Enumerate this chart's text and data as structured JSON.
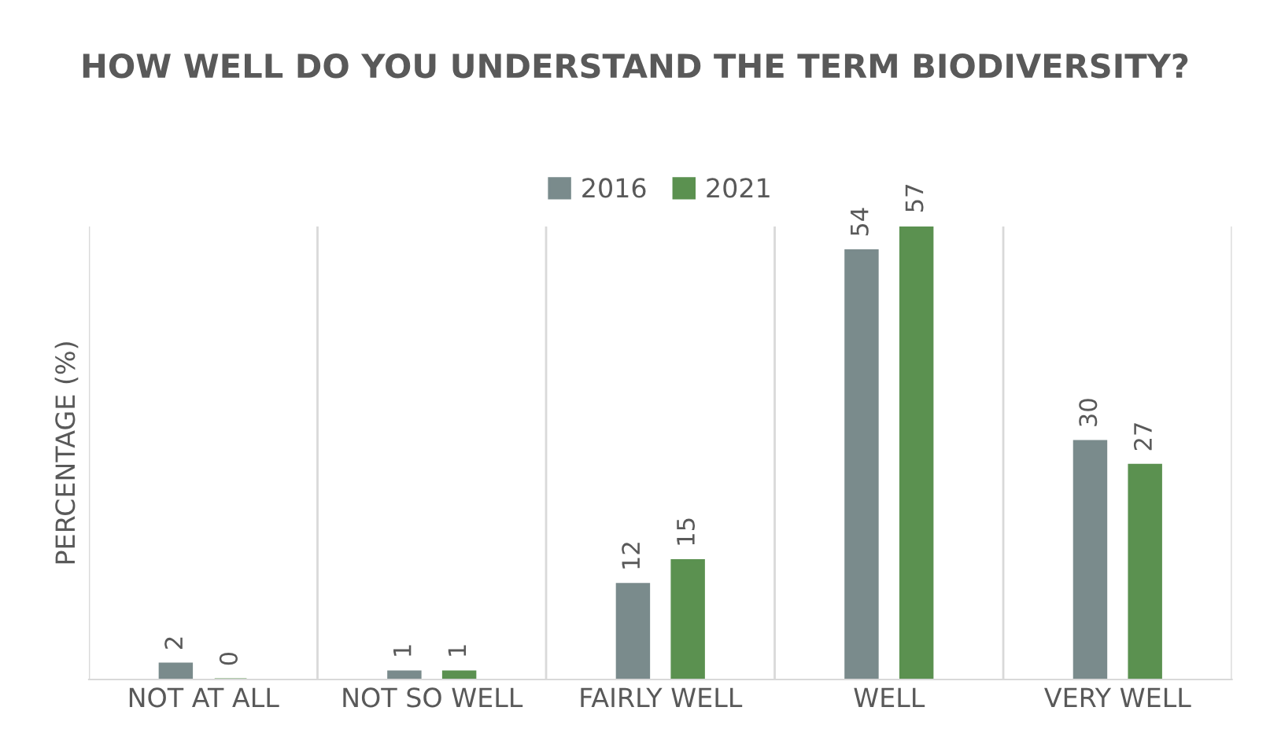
{
  "chart_data": {
    "type": "bar",
    "title": "HOW WELL DO YOU UNDERSTAND THE TERM BIODIVERSITY?",
    "ylabel": "PERCENTAGE (%)",
    "categories": [
      "NOT AT ALL",
      "NOT SO WELL",
      "FAIRLY WELL",
      "WELL",
      "VERY WELL"
    ],
    "series": [
      {
        "name": "2016",
        "color": "#7a8b8c",
        "values": [
          2,
          1,
          12,
          54,
          30
        ]
      },
      {
        "name": "2021",
        "color": "#5b9150",
        "values": [
          0,
          1,
          15,
          57,
          27
        ]
      }
    ],
    "data_labels": true,
    "legend": "top",
    "grid": "x",
    "tick_labels": "x"
  }
}
